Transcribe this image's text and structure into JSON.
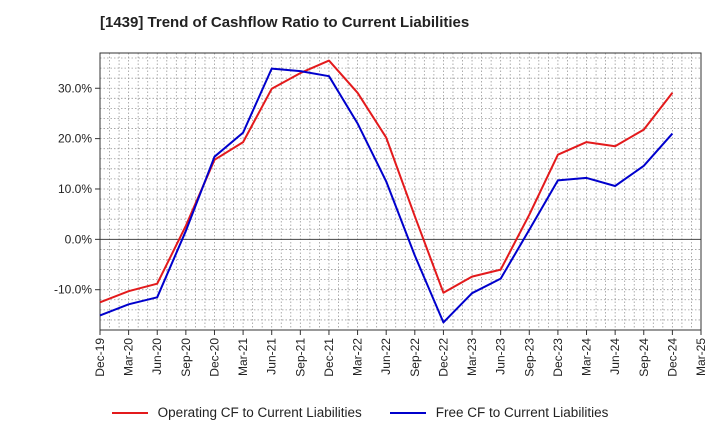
{
  "chart_data": {
    "type": "line",
    "title": "[1439]  Trend of Cashflow Ratio to Current Liabilities",
    "categories": [
      "Dec-19",
      "Mar-20",
      "Jun-20",
      "Sep-20",
      "Dec-20",
      "Mar-21",
      "Jun-21",
      "Sep-21",
      "Dec-21",
      "Mar-22",
      "Jun-22",
      "Sep-22",
      "Dec-22",
      "Mar-23",
      "Jun-23",
      "Sep-23",
      "Dec-23",
      "Mar-24",
      "Jun-24",
      "Sep-24",
      "Dec-24",
      "Mar-25"
    ],
    "y_ticks": [
      -10,
      0,
      10,
      20,
      30
    ],
    "y_tick_labels": [
      "-10.0%",
      "0.0%",
      "10.0%",
      "20.0%",
      "30.0%"
    ],
    "ylim": [
      -18,
      37
    ],
    "grid": true,
    "legend_position": "bottom",
    "series": [
      {
        "name": "Operating CF to Current Liabilities",
        "color": "#e31a1c",
        "values": [
          -12.5,
          -10.3,
          -8.8,
          2.7,
          15.8,
          19.3,
          29.9,
          33.0,
          35.5,
          29.1,
          20.2,
          4.6,
          -10.6,
          -7.4,
          -6.0,
          4.9,
          16.8,
          19.3,
          18.5,
          21.8,
          29.1,
          null
        ]
      },
      {
        "name": "Free CF to Current Liabilities",
        "color": "#0000cc",
        "values": [
          -15.1,
          -12.9,
          -11.5,
          1.7,
          16.4,
          21.2,
          33.9,
          33.4,
          32.4,
          23.0,
          11.5,
          -3.2,
          -16.5,
          -10.7,
          -7.8,
          1.9,
          11.7,
          12.2,
          10.6,
          14.6,
          21.0,
          null
        ]
      }
    ]
  }
}
